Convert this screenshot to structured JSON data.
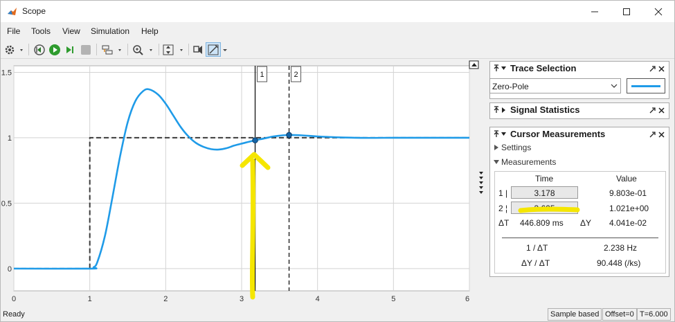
{
  "window": {
    "title": "Scope"
  },
  "menu": [
    "File",
    "Tools",
    "View",
    "Simulation",
    "Help"
  ],
  "toolbar_icons": [
    "gear-icon",
    "step-back-icon",
    "run-icon",
    "step-forward-icon",
    "stop-icon",
    "layout-icon",
    "zoom-icon",
    "autoscale-icon",
    "triggers-icon",
    "cursor-measurements-icon"
  ],
  "chart_data": {
    "type": "line",
    "x_ticks": [
      "0",
      "1",
      "2",
      "3",
      "4",
      "5",
      "6"
    ],
    "y_ticks": [
      "0",
      "0.5",
      "1",
      "1.5"
    ],
    "xlim": [
      0,
      6
    ],
    "ylim": [
      -0.17,
      1.55
    ],
    "grid": true,
    "series": [
      {
        "color": "#1f9be8",
        "style": "solid",
        "x": [
          0,
          1.0,
          1.05,
          1.1,
          1.2,
          1.3,
          1.4,
          1.5,
          1.6,
          1.7,
          1.78,
          1.9,
          2.0,
          2.1,
          2.2,
          2.3,
          2.4,
          2.5,
          2.6,
          2.7,
          2.8,
          2.9,
          3.0,
          3.1,
          3.178,
          3.3,
          3.4,
          3.5,
          3.625,
          3.8,
          4.0,
          4.3,
          4.6,
          5.0,
          5.5,
          6.0
        ],
        "y": [
          0,
          0,
          0.01,
          0.05,
          0.25,
          0.55,
          0.86,
          1.12,
          1.28,
          1.355,
          1.37,
          1.33,
          1.26,
          1.17,
          1.08,
          1.01,
          0.96,
          0.93,
          0.913,
          0.91,
          0.92,
          0.94,
          0.955,
          0.97,
          0.9803,
          0.995,
          1.008,
          1.016,
          1.021,
          1.018,
          1.01,
          1.003,
          0.999,
          1.0,
          1.0,
          1.0
        ]
      },
      {
        "color": "#3a3a3a",
        "style": "dashed",
        "x": [
          0,
          1.0,
          1.0,
          6.0
        ],
        "y": [
          0,
          0,
          1,
          1
        ]
      }
    ],
    "cursors": [
      {
        "label": "1",
        "x": 3.178,
        "y": 0.9803,
        "style": "solid"
      },
      {
        "label": "2",
        "x": 3.625,
        "y": 1.021,
        "style": "dashed"
      }
    ]
  },
  "trace_selection": {
    "title": "Trace Selection",
    "selected": "Zero-Pole",
    "line_color": "#1f9be8"
  },
  "signal_statistics": {
    "title": "Signal Statistics"
  },
  "cursor_measurements": {
    "title": "Cursor Measurements",
    "settings_label": "Settings",
    "measurements_label": "Measurements",
    "col_time": "Time",
    "col_value": "Value",
    "rows": [
      {
        "label": "1 |",
        "time": "3.178",
        "value": "9.803e-01"
      },
      {
        "label": "2 ¦",
        "time": "3.625",
        "value": "1.021e+00"
      }
    ],
    "delta_t_label": "ΔT",
    "delta_t_value": "446.809 ms",
    "delta_y_label": "ΔY",
    "delta_y_value": "4.041e-02",
    "inv_dt_label": "1 / ΔT",
    "inv_dt_value": "2.238 Hz",
    "dy_dt_label": "ΔY / ΔT",
    "dy_dt_value": "90.448 (/ks)"
  },
  "status": {
    "left": "Ready",
    "sample_based": "Sample based",
    "offset": "Offset=0",
    "time": "T=6.000"
  },
  "annotation": {
    "color": "#f5e600"
  }
}
